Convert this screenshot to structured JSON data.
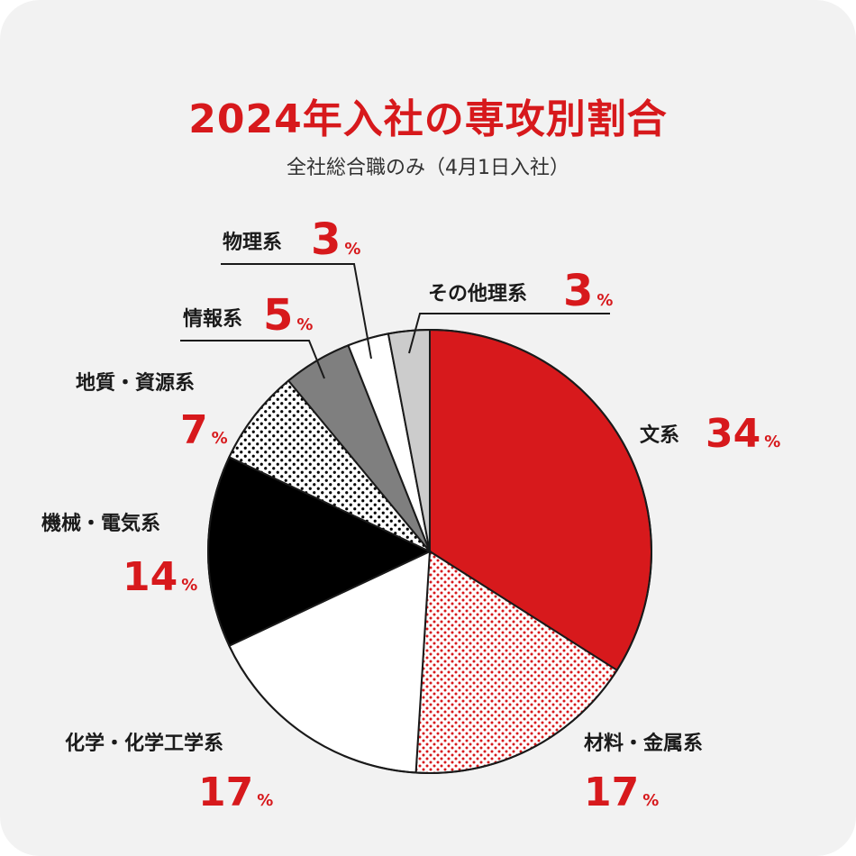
{
  "title": "2024年入社の専攻別割合",
  "subtitle": "全社総合職のみ（4月1日入社）",
  "colors": {
    "accent": "#d7191c",
    "background": "#f2f2f2"
  },
  "chart_data": {
    "type": "pie",
    "title": "2024年入社の専攻別割合",
    "subtitle": "全社総合職のみ（4月1日入社）",
    "unit": "%",
    "slices": [
      {
        "label": "文系",
        "value": 34,
        "pattern": "solid-red"
      },
      {
        "label": "材料・金属系",
        "value": 17,
        "pattern": "red-dots"
      },
      {
        "label": "化学・化学工学系",
        "value": 17,
        "pattern": "white"
      },
      {
        "label": "機械・電気系",
        "value": 14,
        "pattern": "black"
      },
      {
        "label": "地質・資源系",
        "value": 7,
        "pattern": "black-dots"
      },
      {
        "label": "情報系",
        "value": 5,
        "pattern": "dark-gray"
      },
      {
        "label": "物理系",
        "value": 3,
        "pattern": "white"
      },
      {
        "label": "その他理系",
        "value": 3,
        "pattern": "light-gray"
      }
    ]
  }
}
